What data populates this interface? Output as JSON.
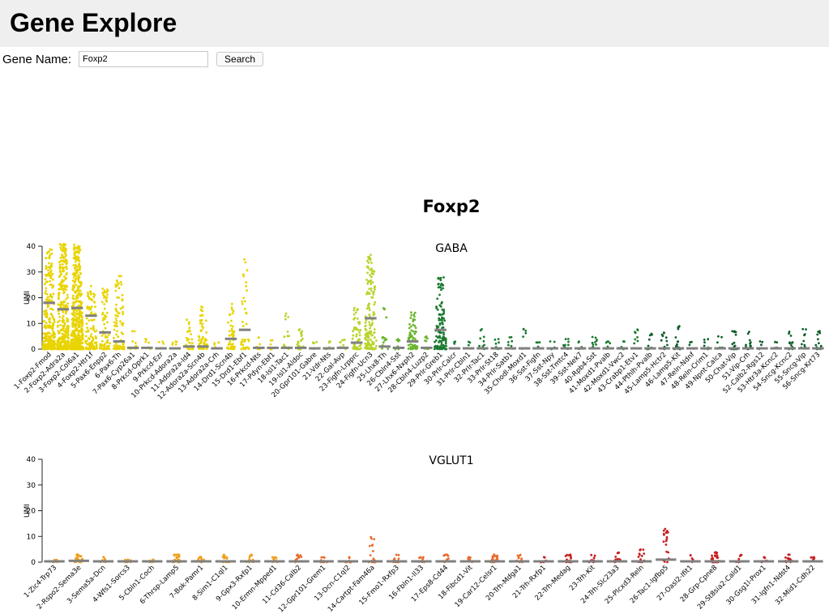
{
  "app": {
    "title": "Gene Explore"
  },
  "search": {
    "label": "Gene Name:",
    "value": "Foxp2",
    "button_label": "Search"
  },
  "colors": {
    "yellow": "#e8d400",
    "yellow_green": "#b8d42a",
    "green": "#6cb530",
    "dark_green": "#1a7a2e",
    "forest": "#0d5e2a",
    "orange": "#f0a020",
    "orange_red": "#e86a28",
    "red": "#c81e1e",
    "median": "#808080"
  },
  "chart_data": [
    {
      "type": "scatter",
      "title": "Foxp2",
      "subtitle": "GABA",
      "ylabel": "UMI",
      "ylim": [
        0,
        40
      ],
      "yticks": [
        0,
        10,
        20,
        30,
        40
      ],
      "categories": [
        "1-Foxp2-Fmod",
        "2-Foxp2-Adra2a",
        "3-Foxp2-Col6a1",
        "4-Foxp2-Htr1f",
        "5-Pax6-Enpp2",
        "6-Pax6-Th",
        "7-Pax6-Cyp26a1",
        "8-Prkcd-Oprk1",
        "9-Prkcd-Ezr",
        "10-Prkcd-Adora2a",
        "11-Adora2a-Id4",
        "12-Adora2a-Scn4b",
        "13-Adora2a-Crh",
        "14-Drd1-Scn4b",
        "15-Drd1-Ebf1",
        "16-Prkcd-Nts",
        "17-Pdyn-Ebf1",
        "18-Isl1-Tac1",
        "19-Isl1-Aldoc",
        "20-Gpr101-Gabre",
        "21-Vdr-Nts",
        "22-Gal-Avp",
        "23-Figfn-Lrpprc",
        "24-Figfn-Ucn3",
        "25-Lhx8-Th",
        "26-Cbln4-Sst",
        "27-Lhx6-Nxph2",
        "28-Cbln4-Luzp2",
        "29-Prlr-Greb1",
        "30-Prlr-Calcr",
        "31-Prlr-Cbln1",
        "32-Prlr-Tac1",
        "33-Prlr-St18",
        "34-Prlr-Satb1",
        "35-Chodl-Moxd1",
        "36-Sst-Figfn",
        "37-Sst-Npy",
        "38-Sst-Tmtc4",
        "39-Sst-Nek7",
        "40-Rpb4-Sst",
        "41-Moxd1-Pvalb",
        "42-Moxd1-Vwc2",
        "43-Crabp1-Etv1",
        "44-Pthlh-Pvalb",
        "45-Lamp5-Hctr2",
        "46-Lamp5-Kit",
        "47-Reln-Ndnf",
        "48-Reln-Crim1",
        "49-Npnt-Calca",
        "50-Chat-Vip",
        "51-Vip-Crh",
        "52-Calb2-Rgs12",
        "53-Htr3a-Kcnc2",
        "54-Sncg-Kcnc2",
        "55-Sncg-Vip",
        "56-Sncg-Krt73"
      ],
      "medians": [
        18,
        15.5,
        16,
        13,
        6.5,
        3,
        0.5,
        0.5,
        0.3,
        0.3,
        1,
        1,
        0.3,
        4,
        7.5,
        0.5,
        0.5,
        0.5,
        0.5,
        0.3,
        0.3,
        0.5,
        2.5,
        12,
        1,
        0.5,
        3,
        0.5,
        7.5,
        0.3,
        0.3,
        0.3,
        0.3,
        0.3,
        0.3,
        0.3,
        0.3,
        0.3,
        0.3,
        0.3,
        0.3,
        0.3,
        0.3,
        0.3,
        0.3,
        0.3,
        0.3,
        0.3,
        0.3,
        0.3,
        0.3,
        0.3,
        0.3,
        0.3,
        0.3,
        0.3
      ],
      "maxima": [
        39,
        41,
        41,
        25,
        24,
        29,
        8,
        4,
        3,
        3,
        12,
        17,
        3,
        18,
        35,
        5,
        4,
        14,
        8,
        3,
        3,
        4,
        17,
        37,
        18,
        4,
        15,
        5,
        28,
        3,
        3,
        8,
        4,
        5,
        8,
        3,
        3,
        4,
        3,
        5,
        3,
        3,
        8,
        6,
        7,
        9,
        3,
        4,
        5,
        7,
        7,
        3,
        3,
        7,
        8,
        7
      ],
      "densities": [
        260,
        320,
        440,
        110,
        70,
        90,
        12,
        6,
        5,
        5,
        30,
        55,
        5,
        45,
        40,
        10,
        8,
        18,
        25,
        5,
        5,
        8,
        60,
        140,
        15,
        8,
        60,
        10,
        120,
        3,
        3,
        10,
        8,
        8,
        6,
        4,
        4,
        10,
        6,
        10,
        6,
        6,
        10,
        8,
        12,
        18,
        4,
        8,
        6,
        18,
        12,
        4,
        4,
        12,
        10,
        14
      ],
      "series_colors": [
        "yellow",
        "yellow",
        "yellow",
        "yellow",
        "yellow",
        "yellow",
        "yellow",
        "yellow",
        "yellow",
        "yellow",
        "yellow",
        "yellow",
        "yellow",
        "yellow",
        "yellow",
        "yellow",
        "yellow",
        "yellow_green",
        "yellow_green",
        "yellow_green",
        "yellow_green",
        "yellow_green",
        "yellow_green",
        "yellow_green",
        "green",
        "green",
        "green",
        "green",
        "dark_green",
        "dark_green",
        "dark_green",
        "dark_green",
        "dark_green",
        "dark_green",
        "dark_green",
        "dark_green",
        "dark_green",
        "dark_green",
        "dark_green",
        "dark_green",
        "dark_green",
        "dark_green",
        "dark_green",
        "forest",
        "forest",
        "forest",
        "forest",
        "forest",
        "forest",
        "forest",
        "forest",
        "forest",
        "forest",
        "forest",
        "forest",
        "forest"
      ]
    },
    {
      "type": "scatter",
      "subtitle": "VGLUT1",
      "ylabel": "UMI",
      "ylim": [
        0,
        40
      ],
      "yticks": [
        0,
        10,
        20,
        30,
        40
      ],
      "categories": [
        "1-Zic4-Trp73",
        "2-Rspo2-Sema3e",
        "3-Sema5a-Dcn",
        "4-Wfs1-Sorcs3",
        "5-Cbln1-Coch",
        "6-Thrsp-Lamp5",
        "7-Bok-Pamr1",
        "8-Sim1-C1ql1",
        "9-Gpx3-Rxfp1",
        "10-Ermn-Mpped1",
        "11-Cd36-Calb2",
        "12-Gpr101-Grem1",
        "13-Dcn-C1ql2",
        "14-Cartpt-Fam46a",
        "15-Fmo1-Rxfp3",
        "16-Fbln1-Il33",
        "17-Eps8-Cd44",
        "18-Fibcd1-Vit",
        "19-Car12-Celsr1",
        "20-Trh-Mdga1",
        "21-Trh-Rxfp1",
        "22-Trh-Medag",
        "23-Trh-Kit",
        "24-Trh-Slc23a3",
        "25-Plcxd3-Reln",
        "26-Tac1-Igfbp5",
        "27-Oasl2-Ifit1",
        "28-Grp-Cpne8",
        "29-St8sia2-Cald1",
        "30-Gsg1l-Prox1",
        "31-Igfn1-Ndst4",
        "32-Mid1-Cdh22"
      ],
      "medians": [
        0.3,
        0.5,
        0.3,
        0.3,
        0.3,
        0.3,
        0.3,
        0.3,
        0.3,
        0.3,
        0.3,
        0.3,
        0.3,
        0.3,
        0.3,
        0.3,
        0.3,
        0.3,
        0.3,
        0.3,
        0.3,
        0.3,
        0.3,
        0.3,
        0.3,
        1,
        0.3,
        0.3,
        0.3,
        0.3,
        0.3,
        0.3
      ],
      "maxima": [
        1,
        3,
        2,
        1,
        1,
        3,
        2,
        3,
        3,
        2,
        3,
        2,
        2,
        10,
        3,
        2,
        3,
        2,
        3,
        3,
        2,
        3,
        3,
        4,
        5,
        13,
        3,
        4,
        3,
        2,
        3,
        2
      ],
      "densities": [
        6,
        40,
        8,
        10,
        8,
        30,
        12,
        18,
        18,
        12,
        14,
        14,
        14,
        20,
        16,
        14,
        14,
        8,
        40,
        10,
        8,
        16,
        12,
        14,
        18,
        20,
        6,
        30,
        10,
        8,
        14,
        8
      ],
      "series_colors": [
        "orange",
        "orange",
        "orange",
        "orange",
        "orange",
        "orange",
        "orange",
        "orange",
        "orange",
        "orange",
        "orange_red",
        "orange_red",
        "orange_red",
        "orange_red",
        "orange_red",
        "orange_red",
        "orange_red",
        "orange_red",
        "orange_red",
        "orange_red",
        "red",
        "red",
        "red",
        "red",
        "red",
        "red",
        "red",
        "red",
        "red",
        "red",
        "red",
        "red"
      ]
    }
  ]
}
